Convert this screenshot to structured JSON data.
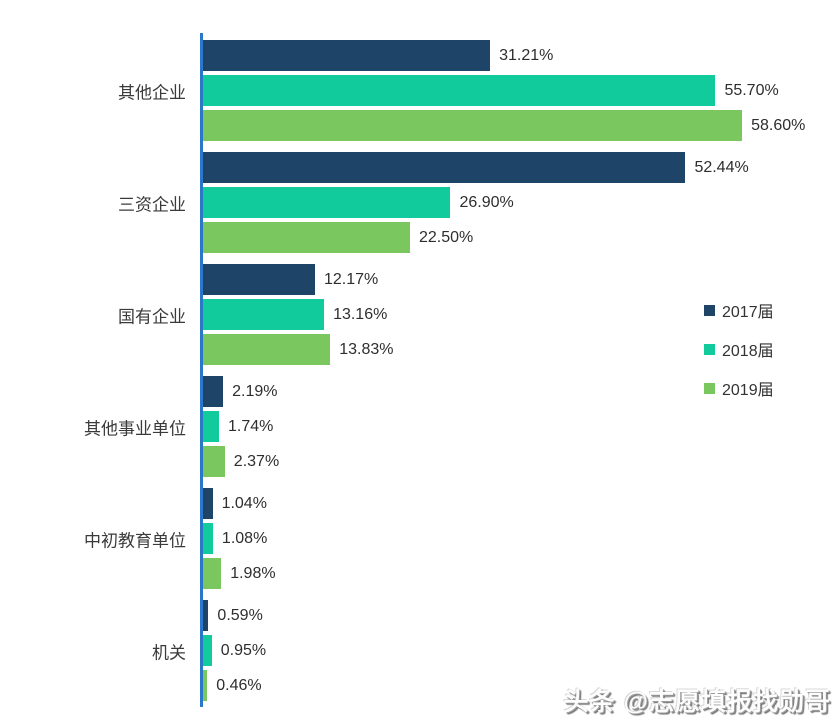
{
  "chart_data": {
    "type": "bar",
    "orientation": "horizontal",
    "title": "",
    "xlabel": "",
    "ylabel": "",
    "xlim": [
      0,
      60
    ],
    "grid": false,
    "legend_position": "right",
    "axis_line_color": "#2b78c8",
    "value_label_format": "0.00%",
    "categories": [
      "其他企业",
      "三资企业",
      "国有企业",
      "其他事业单位",
      "中初教育单位",
      "机关"
    ],
    "series": [
      {
        "name": "2017届",
        "color": "#1e4467",
        "values": [
          31.21,
          52.44,
          12.17,
          2.19,
          1.04,
          0.59
        ]
      },
      {
        "name": "2018届",
        "color": "#11cb9c",
        "values": [
          55.7,
          26.9,
          13.16,
          1.74,
          1.08,
          0.95
        ]
      },
      {
        "name": "2019届",
        "color": "#7ac75f",
        "values": [
          58.6,
          22.5,
          13.83,
          2.37,
          1.98,
          0.46
        ]
      }
    ]
  },
  "watermark": {
    "text": "头条 @志愿填报找勋哥"
  }
}
